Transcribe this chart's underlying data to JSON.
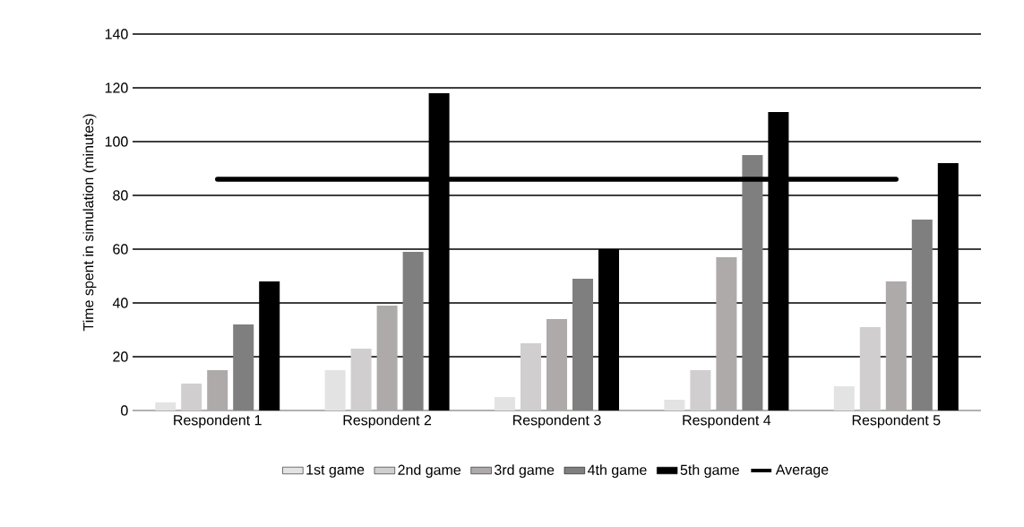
{
  "chart_data": {
    "type": "bar",
    "ylabel": "Time spent in simulation (minutes)",
    "categories": [
      "Respondent 1",
      "Respondent 2",
      "Respondent 3",
      "Respondent 4",
      "Respondent 5"
    ],
    "series": [
      {
        "name": "1st game",
        "color": "#e3e3e3",
        "values": [
          3,
          15,
          5,
          4,
          9
        ]
      },
      {
        "name": "2nd game",
        "color": "#d0cece",
        "values": [
          10,
          23,
          25,
          15,
          31
        ]
      },
      {
        "name": "3rd game",
        "color": "#aeaaaa",
        "values": [
          15,
          39,
          34,
          57,
          48
        ]
      },
      {
        "name": "4th game",
        "color": "#7f7f7f",
        "values": [
          32,
          59,
          49,
          95,
          71
        ]
      },
      {
        "name": "5th game",
        "color": "#000000",
        "values": [
          48,
          118,
          60,
          111,
          92
        ]
      },
      {
        "name": "Average",
        "type": "line",
        "color": "#000000",
        "values": [
          86,
          86,
          86,
          86,
          86
        ]
      }
    ],
    "ylim": [
      0,
      140
    ],
    "yticks": [
      0,
      20,
      40,
      60,
      80,
      100,
      120,
      140
    ],
    "grid": "y",
    "legend": "bottom",
    "marker": "none",
    "line_style": "solid"
  }
}
